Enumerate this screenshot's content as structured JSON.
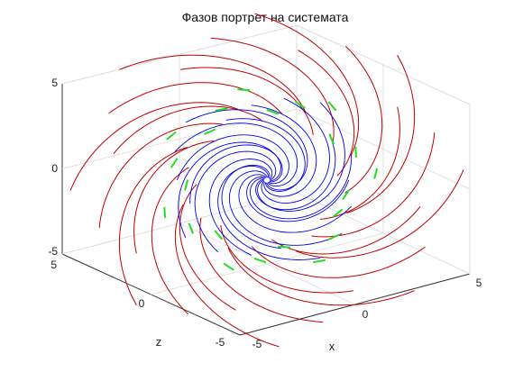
{
  "chart_data": {
    "type": "line",
    "projection": "3d",
    "title": "Фазов портрет на системата",
    "xlabel": "x",
    "ylabel": "",
    "zlabel": "z",
    "xlim": [
      -5,
      5
    ],
    "ylim": [
      -5,
      5
    ],
    "zlim": [
      -5,
      5
    ],
    "x_ticks": [
      "-5",
      "0",
      "5"
    ],
    "y_ticks": [
      "-5",
      "0",
      "5"
    ],
    "z_ticks": [
      "-5",
      "0",
      "5"
    ],
    "grid": true,
    "legend": "none",
    "series": [
      {
        "role": "trajectories",
        "color": "#c00000",
        "count": 24
      },
      {
        "role": "attracting-core",
        "color": "#0000ee",
        "count": 18
      },
      {
        "role": "direction-arrows",
        "color": "#22dd22",
        "count": 22
      }
    ],
    "vortex": {
      "center": [
        0,
        0,
        0
      ],
      "turns": "clockwise-inward"
    }
  }
}
